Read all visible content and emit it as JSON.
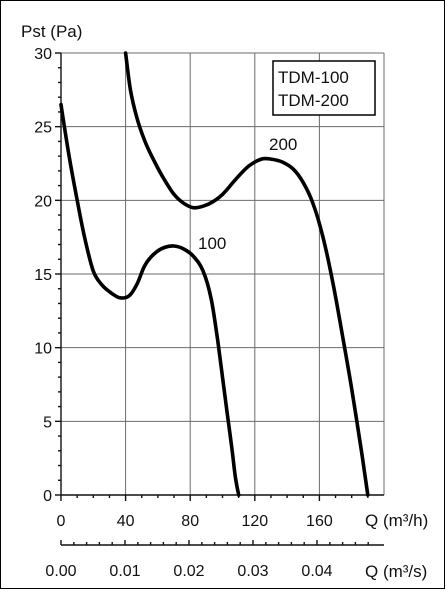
{
  "chart_data": {
    "type": "line",
    "ylabel": "Pst (Pa)",
    "xlabel": "Q (m³/h)",
    "x2label": "Q (m³/s)",
    "ylim": [
      0,
      30
    ],
    "xlim": [
      0,
      200
    ],
    "x_ticks": [
      "0",
      "40",
      "80",
      "120",
      "160"
    ],
    "x_tick_values": [
      0,
      40,
      80,
      120,
      160
    ],
    "y_ticks": [
      "0",
      "5",
      "10",
      "15",
      "20",
      "25",
      "30"
    ],
    "y_tick_values": [
      0,
      5,
      10,
      15,
      20,
      25,
      30
    ],
    "x2_ticks": [
      "0.00",
      "0.01",
      "0.02",
      "0.03",
      "0.04"
    ],
    "x2_tick_values": [
      0,
      0.01,
      0.02,
      0.03,
      0.04
    ],
    "grid": true,
    "legend": [
      "TDM-100",
      "TDM-200"
    ],
    "legend_position": "top-right",
    "series": [
      {
        "name": "100",
        "label": "100",
        "x": [
          0,
          5,
          10,
          15,
          20,
          25,
          30,
          36,
          42,
          47,
          52,
          58,
          64,
          70,
          76,
          82,
          88,
          93,
          97,
          100,
          103,
          106,
          108,
          110
        ],
        "y": [
          26.5,
          23,
          20,
          17.3,
          15.2,
          14.3,
          13.8,
          13.4,
          13.5,
          14.3,
          15.6,
          16.4,
          16.8,
          16.9,
          16.7,
          16.2,
          15.2,
          13.3,
          10.5,
          8,
          5.5,
          3,
          1.2,
          0
        ]
      },
      {
        "name": "200",
        "label": "200",
        "x": [
          40,
          43,
          47,
          52,
          58,
          64,
          70,
          76,
          82,
          88,
          94,
          100,
          108,
          116,
          124,
          130,
          137,
          144,
          150,
          156,
          162,
          168,
          174,
          180,
          186,
          190
        ],
        "y": [
          30,
          27.5,
          25.6,
          24,
          22.6,
          21.4,
          20.4,
          19.8,
          19.5,
          19.6,
          19.9,
          20.4,
          21.4,
          22.3,
          22.8,
          22.8,
          22.6,
          22.1,
          21.2,
          19.8,
          17.6,
          14.6,
          11,
          7.2,
          3,
          0
        ]
      }
    ]
  }
}
